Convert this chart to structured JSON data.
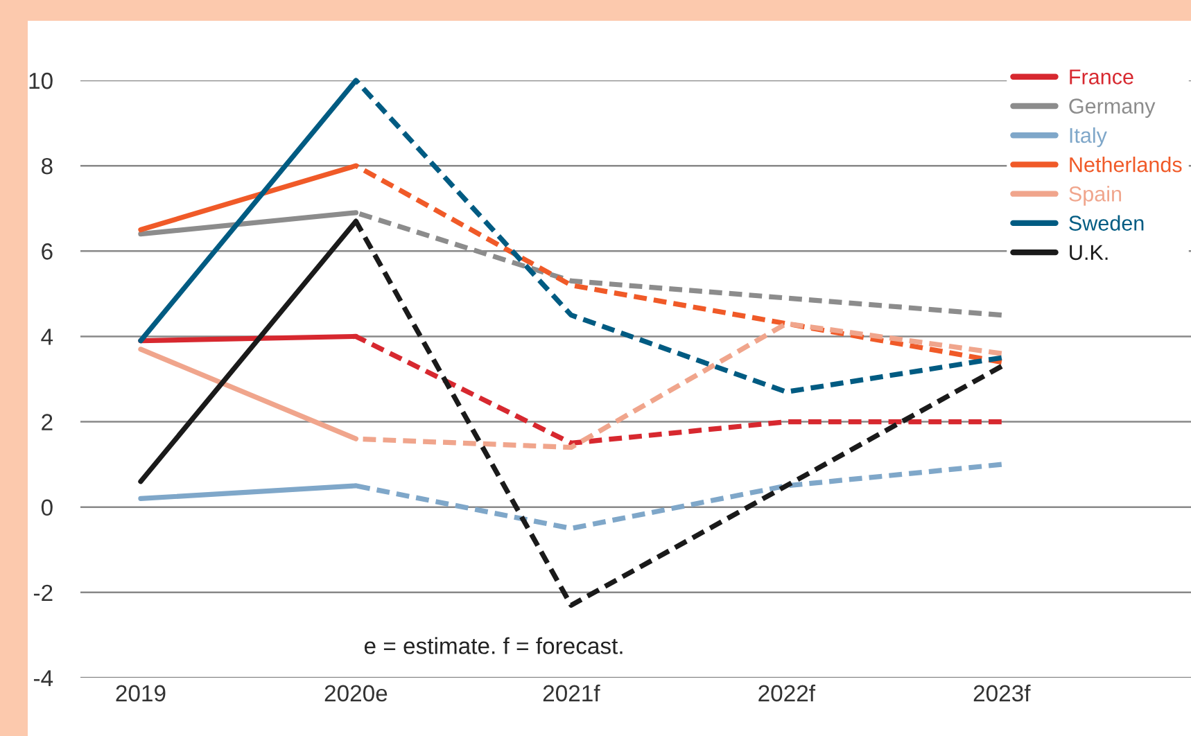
{
  "chart_data": {
    "type": "line",
    "categories": [
      "2019",
      "2020e",
      "2021f",
      "2022f",
      "2023f"
    ],
    "series": [
      {
        "name": "France",
        "color": "#d7282f",
        "line_style": "solid",
        "values": [
          3.9,
          4.0,
          null,
          null,
          null
        ]
      },
      {
        "name": "Germany",
        "color": "#8c8c8c",
        "line_style": "solid",
        "values": [
          6.4,
          6.9,
          null,
          null,
          null
        ]
      },
      {
        "name": "Italy",
        "color": "#7fa7c9",
        "line_style": "solid",
        "values": [
          0.2,
          0.5,
          null,
          null,
          null
        ]
      },
      {
        "name": "Netherlands",
        "color": "#f05a28",
        "line_style": "solid",
        "values": [
          6.5,
          8.0,
          null,
          null,
          null
        ]
      },
      {
        "name": "Spain",
        "color": "#f0a58c",
        "line_style": "solid",
        "values": [
          3.7,
          1.6,
          null,
          null,
          null
        ]
      },
      {
        "name": "Sweden",
        "color": "#005b82",
        "line_style": "solid",
        "values": [
          3.9,
          10.0,
          null,
          null,
          null
        ]
      },
      {
        "name": "U.K.",
        "color": "#1a1a1a",
        "line_style": "solid",
        "values": [
          0.6,
          6.7,
          null,
          null,
          null
        ]
      },
      {
        "color": "#d7282f",
        "line_style": "dashed",
        "values": [
          null,
          4.0,
          1.5,
          2.0,
          2.0
        ]
      },
      {
        "color": "#8c8c8c",
        "line_style": "dashed",
        "values": [
          null,
          6.9,
          5.3,
          4.9,
          4.5
        ]
      },
      {
        "color": "#7fa7c9",
        "line_style": "dashed",
        "values": [
          null,
          0.5,
          -0.5,
          0.5,
          1.0
        ]
      },
      {
        "color": "#f05a28",
        "line_style": "dashed",
        "values": [
          null,
          8.0,
          5.2,
          4.3,
          3.4
        ]
      },
      {
        "color": "#f0a58c",
        "line_style": "dashed",
        "values": [
          null,
          1.6,
          1.4,
          4.3,
          3.6
        ]
      },
      {
        "color": "#005b82",
        "line_style": "dashed",
        "values": [
          null,
          10.0,
          4.5,
          2.7,
          3.5
        ]
      },
      {
        "color": "#1a1a1a",
        "line_style": "dashed",
        "values": [
          null,
          6.7,
          -2.3,
          0.5,
          3.3
        ]
      }
    ],
    "ylim": [
      -4,
      10
    ],
    "yticks": [
      -4,
      -2,
      0,
      2,
      4,
      6,
      8,
      10
    ],
    "grid": "y",
    "legend": "top right",
    "annotations": [
      "e = estimate. f = forecast."
    ]
  }
}
